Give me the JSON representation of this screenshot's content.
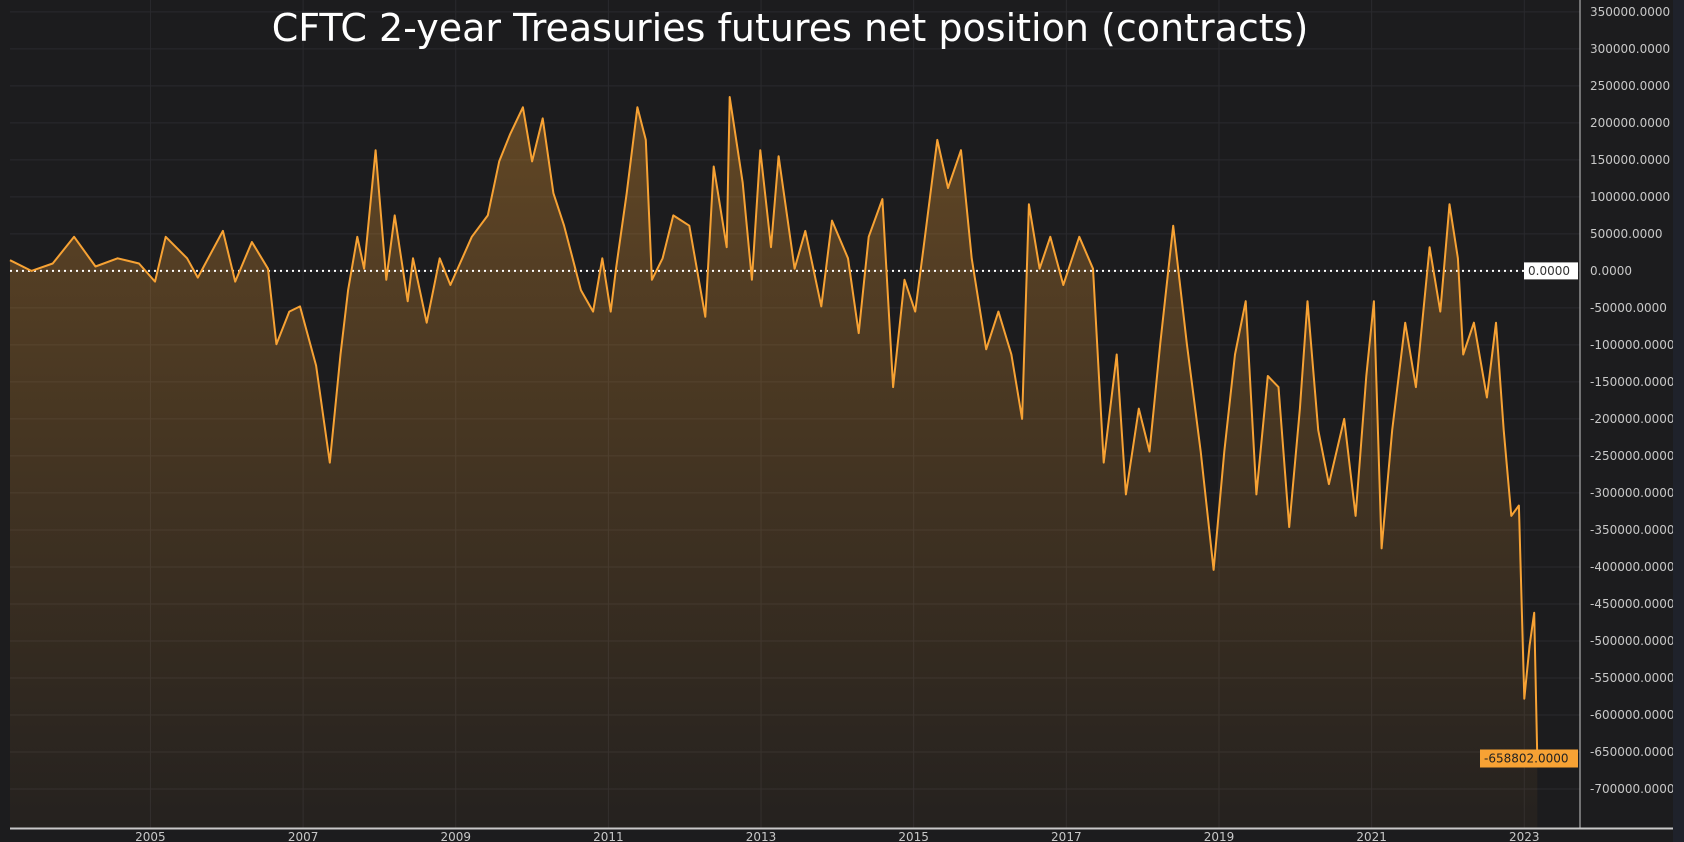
{
  "chart_data": {
    "type": "area",
    "title": "CFTC 2-year Treasuries futures net position (contracts)",
    "xlabel": "",
    "ylabel": "",
    "xlim": [
      2003.13,
      2023.7
    ],
    "ylim": [
      -752700,
      366000
    ],
    "x_ticks": [
      "2005",
      "2007",
      "2009",
      "2011",
      "2013",
      "2015",
      "2017",
      "2019",
      "2021",
      "2023"
    ],
    "y_ticks": [
      350000,
      300000,
      250000,
      200000,
      150000,
      100000,
      50000,
      0,
      -50000,
      -100000,
      -150000,
      -200000,
      -250000,
      -300000,
      -350000,
      -400000,
      -450000,
      -500000,
      -550000,
      -600000,
      -650000,
      -700000
    ],
    "y_tick_labels": [
      "350000.0000",
      "300000.0000",
      "250000.0000",
      "200000.0000",
      "150000.0000",
      "100000.0000",
      "50000.0000",
      "0.0000",
      "-50000.0000",
      "-100000.0000",
      "-150000.0000",
      "-200000.0000",
      "-250000.0000",
      "-300000.0000",
      "-350000.0000",
      "-400000.0000",
      "-450000.0000",
      "-500000.0000",
      "-550000.0000",
      "-600000.0000",
      "-650000.0000",
      "-700000.0000"
    ],
    "zero_line_label": "0.0000",
    "last_value_label": "-658802.0000",
    "grid": true,
    "colors": {
      "line": "#f7a234",
      "background": "#1c1c1e",
      "grid": "#2a2a2e",
      "text": "#c8c8c8"
    },
    "series": [
      {
        "x": [
          2003.13,
          2003.41,
          2003.69,
          2003.97,
          2004.25,
          2004.54,
          2004.82,
          2005.03,
          2005.17,
          2005.45,
          2005.59,
          2005.92,
          2006.08,
          2006.3,
          2006.51,
          2006.62,
          2006.79,
          2006.93,
          2007.14,
          2007.32,
          2007.46,
          2007.56,
          2007.68,
          2007.77,
          2007.92,
          2008.06,
          2008.17,
          2008.34,
          2008.41,
          2008.59,
          2008.76,
          2008.9,
          2009.18,
          2009.39,
          2009.54,
          2009.68,
          2009.85,
          2009.97,
          2010.11,
          2010.25,
          2010.39,
          2010.61,
          2010.77,
          2010.89,
          2011.0,
          2011.07,
          2011.21,
          2011.35,
          2011.46,
          2011.54,
          2011.68,
          2011.82,
          2012.03,
          2012.24,
          2012.35,
          2012.52,
          2012.56,
          2012.73,
          2012.85,
          2012.96,
          2013.1,
          2013.2,
          2013.41,
          2013.55,
          2013.76,
          2013.9,
          2014.11,
          2014.25,
          2014.38,
          2014.56,
          2014.7,
          2014.85,
          2014.99,
          2015.1,
          2015.28,
          2015.42,
          2015.59,
          2015.73,
          2015.92,
          2016.08,
          2016.25,
          2016.39,
          2016.48,
          2016.62,
          2016.76,
          2016.93,
          2017.14,
          2017.32,
          2017.46,
          2017.63,
          2017.75,
          2017.92,
          2018.06,
          2018.2,
          2018.37,
          2018.55,
          2018.73,
          2018.9,
          2019.04,
          2019.18,
          2019.32,
          2019.46,
          2019.61,
          2019.75,
          2019.89,
          2020.03,
          2020.13,
          2020.27,
          2020.41,
          2020.61,
          2020.76,
          2020.9,
          2021.0,
          2021.1,
          2021.24,
          2021.41,
          2021.55,
          2021.73,
          2021.87,
          2021.99,
          2022.1,
          2022.17,
          2022.31,
          2022.48,
          2022.6,
          2022.7,
          2022.8,
          2022.9,
          2022.97,
          2023.04,
          2023.1,
          2023.14
        ],
        "values": [
          14500,
          0,
          10000,
          46000,
          6000,
          17000,
          10000,
          -14500,
          46000,
          17000,
          -9000,
          54000,
          -14500,
          39000,
          3000,
          -99000,
          -55000,
          -48000,
          -128000,
          -259000,
          -113000,
          -26000,
          46000,
          3000,
          163000,
          -12000,
          75000,
          -41000,
          17000,
          -70000,
          17000,
          -19000,
          46000,
          75000,
          148000,
          184000,
          221000,
          148000,
          206000,
          105000,
          61000,
          -26000,
          -55000,
          17000,
          -55000,
          3000,
          105000,
          221000,
          177000,
          -12000,
          17000,
          75000,
          61000,
          -62000,
          141000,
          32000,
          235000,
          119000,
          -12000,
          163000,
          32000,
          155000,
          3000,
          54000,
          -48000,
          68000,
          17000,
          -84000,
          46000,
          97000,
          -157000,
          -12000,
          -55000,
          32000,
          177000,
          112000,
          163000,
          17000,
          -106000,
          -55000,
          -113000,
          -200000,
          90000,
          3000,
          46000,
          -19000,
          46000,
          3000,
          -259000,
          -113000,
          -302000,
          -186000,
          -244000,
          -99000,
          61000,
          -99000,
          -244000,
          -404000,
          -244000,
          -113000,
          -41000,
          -302000,
          -142000,
          -157000,
          -346000,
          -186000,
          -41000,
          -215000,
          -288000,
          -200000,
          -331000,
          -142000,
          -41000,
          -375000,
          -215000,
          -70000,
          -157000,
          32000,
          -55000,
          90000,
          17000,
          -113000,
          -70000,
          -171000,
          -70000,
          -215000,
          -331000,
          -317000,
          -578000,
          -506000,
          -462000,
          -658802
        ]
      }
    ]
  }
}
